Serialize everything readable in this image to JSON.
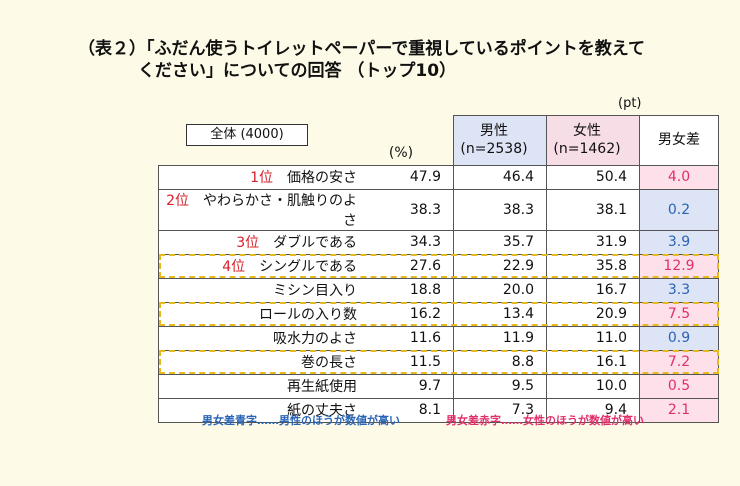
{
  "title_line1": "（表２）「ふだん使うトイレットペーパーで重視しているポイントを教えて",
  "title_line2": "ください」についての回答 （トップ10）",
  "unit_pt": "(pt)",
  "sample_label": "全体 (4000)",
  "headers": {
    "all": "(%)",
    "male": "男性",
    "male_n": "(n=2538)",
    "female": "女性",
    "female_n": "(n=1462)",
    "diff": "男女差"
  },
  "notes": {
    "blue": "男女差青字……男性のほうが数値が高い",
    "red": "男女差赤字……女性のほうが数値が高い"
  },
  "colors": {
    "male_higher": "#2a64b5",
    "female_higher": "#e0306a",
    "rank": "#d6202a",
    "highlight": "#e8b820"
  },
  "chart_data": {
    "type": "table",
    "columns": [
      "(%)",
      "男性 (n=2538)",
      "女性 (n=1462)",
      "男女差"
    ],
    "rows": [
      {
        "rank": "1位",
        "item": "価格の安さ",
        "all": "47.9",
        "male": "46.4",
        "female": "50.4",
        "diff": "4.0",
        "higher": "female",
        "highlight": false
      },
      {
        "rank": "2位",
        "item": "やわらかさ・肌触りのよさ",
        "all": "38.3",
        "male": "38.3",
        "female": "38.1",
        "diff": "0.2",
        "higher": "male",
        "highlight": false
      },
      {
        "rank": "3位",
        "item": "ダブルである",
        "all": "34.3",
        "male": "35.7",
        "female": "31.9",
        "diff": "3.9",
        "higher": "male",
        "highlight": false
      },
      {
        "rank": "4位",
        "item": "シングルである",
        "all": "27.6",
        "male": "22.9",
        "female": "35.8",
        "diff": "12.9",
        "higher": "female",
        "highlight": true
      },
      {
        "rank": "",
        "item": "ミシン目入り",
        "all": "18.8",
        "male": "20.0",
        "female": "16.7",
        "diff": "3.3",
        "higher": "male",
        "highlight": false
      },
      {
        "rank": "",
        "item": "ロールの入り数",
        "all": "16.2",
        "male": "13.4",
        "female": "20.9",
        "diff": "7.5",
        "higher": "female",
        "highlight": true
      },
      {
        "rank": "",
        "item": "吸水力のよさ",
        "all": "11.6",
        "male": "11.9",
        "female": "11.0",
        "diff": "0.9",
        "higher": "male",
        "highlight": false
      },
      {
        "rank": "",
        "item": "巻の長さ",
        "all": "11.5",
        "male": "8.8",
        "female": "16.1",
        "diff": "7.2",
        "higher": "female",
        "highlight": true
      },
      {
        "rank": "",
        "item": "再生紙使用",
        "all": "9.7",
        "male": "9.5",
        "female": "10.0",
        "diff": "0.5",
        "higher": "female",
        "highlight": false
      },
      {
        "rank": "",
        "item": "紙の丈夫さ",
        "all": "8.1",
        "male": "7.3",
        "female": "9.4",
        "diff": "2.1",
        "higher": "female",
        "highlight": false
      }
    ]
  }
}
